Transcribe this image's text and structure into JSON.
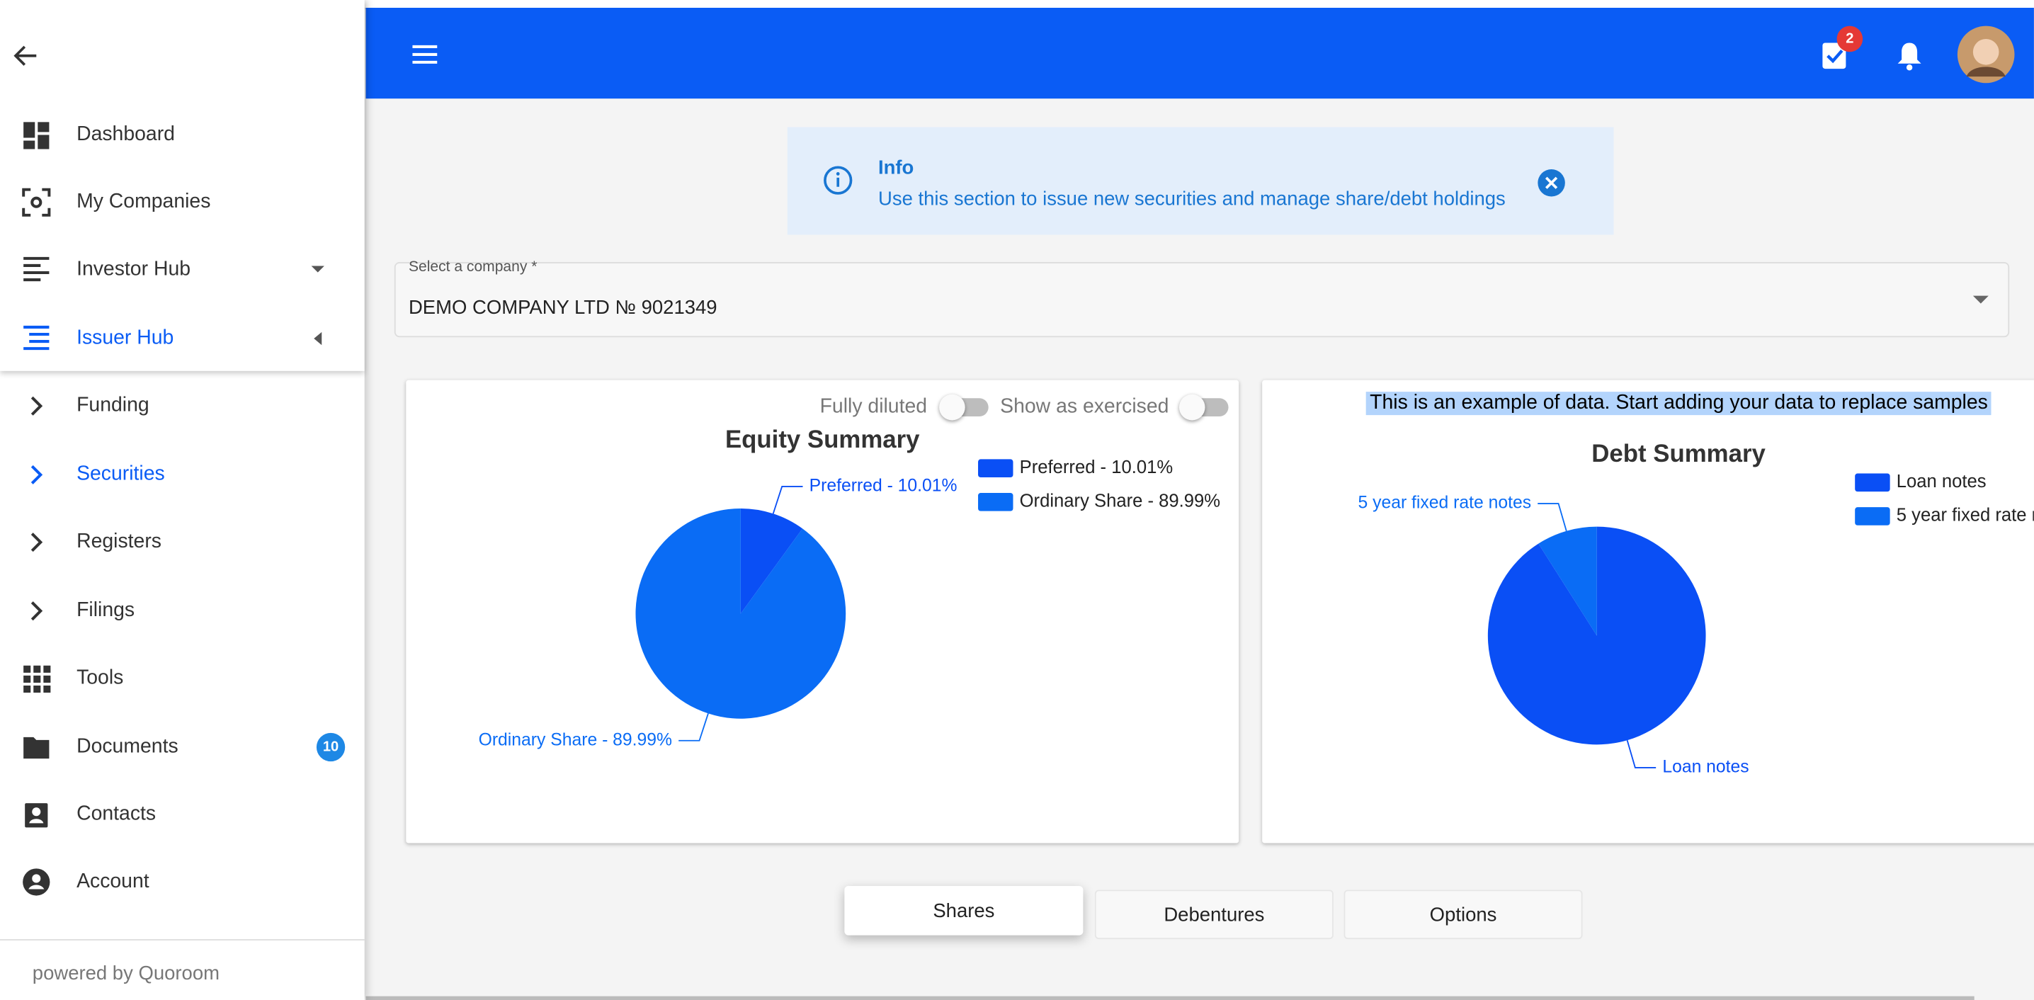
{
  "sidebar": {
    "items": [
      {
        "label": "Dashboard"
      },
      {
        "label": "My Companies"
      },
      {
        "label": "Investor Hub"
      },
      {
        "label": "Issuer Hub",
        "active": true
      },
      {
        "label": "Funding"
      },
      {
        "label": "Securities",
        "active": true
      },
      {
        "label": "Registers"
      },
      {
        "label": "Filings"
      },
      {
        "label": "Tools"
      },
      {
        "label": "Documents",
        "badge": 10
      },
      {
        "label": "Contacts"
      },
      {
        "label": "Account"
      }
    ],
    "footer": "powered by Quoroom"
  },
  "header": {
    "tasks_badge": 2
  },
  "info": {
    "title": "Info",
    "message": "Use this section to issue new securities and manage share/debt holdings"
  },
  "company_select": {
    "label": "Select a company *",
    "value": "DEMO COMPANY LTD № 9021349"
  },
  "equity_controls": {
    "fully_diluted": "Fully diluted",
    "show_as_exercised": "Show as exercised"
  },
  "debt_notice": "This is an example of data. Start adding your data to replace samples",
  "chart_data": [
    {
      "type": "pie",
      "title": "Equity Summary",
      "categories": [
        "Preferred",
        "Ordinary Share"
      ],
      "values": [
        10.01,
        89.99
      ],
      "value_labels": [
        "Preferred  - 10.01%",
        "Ordinary Share - 89.99%"
      ],
      "colors": [
        "#0a4ff5",
        "#0a6cf5"
      ]
    },
    {
      "type": "pie",
      "title": "Debt Summary",
      "categories": [
        "Loan notes",
        "5 year fixed rate notes"
      ],
      "values": [
        91,
        9
      ],
      "colors": [
        "#0a4ff5",
        "#0a6cf5"
      ]
    }
  ],
  "tabs": [
    {
      "label": "Shares",
      "selected": true
    },
    {
      "label": "Debentures"
    },
    {
      "label": "Options"
    }
  ]
}
